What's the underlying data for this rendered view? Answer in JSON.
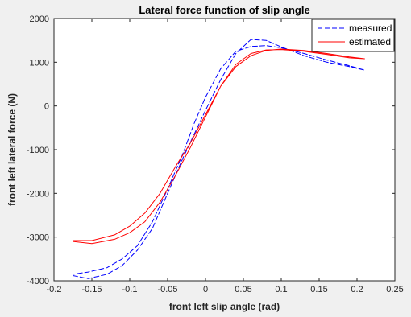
{
  "chart_data": {
    "type": "line",
    "title": "Lateral force function of slip angle",
    "xlabel": "front left slip angle (rad)",
    "ylabel": "front left lateral force (N)",
    "xlim": [
      -0.2,
      0.25
    ],
    "ylim": [
      -4000,
      2000
    ],
    "xticks": [
      -0.2,
      -0.15,
      -0.1,
      -0.05,
      0,
      0.05,
      0.1,
      0.15,
      0.2,
      0.25
    ],
    "xtick_labels": [
      "-0.2",
      "-0.15",
      "-0.1",
      "-0.05",
      "0",
      "0.05",
      "0.1",
      "0.15",
      "0.2",
      "0.25"
    ],
    "yticks": [
      -4000,
      -3000,
      -2000,
      -1000,
      0,
      1000,
      2000
    ],
    "ytick_labels": [
      "-4000",
      "-3000",
      "-2000",
      "-1000",
      "0",
      "1000",
      "2000"
    ],
    "grid": false,
    "legend_position": "top-right",
    "series": [
      {
        "name": "measured",
        "color": "#0000ff",
        "style": "dashed",
        "x": [
          -0.175,
          -0.155,
          -0.13,
          -0.11,
          -0.09,
          -0.07,
          -0.05,
          -0.03,
          -0.015,
          0.0,
          0.02,
          0.04,
          0.06,
          0.08,
          0.1,
          0.13,
          0.16,
          0.19,
          0.21,
          0.19,
          0.16,
          0.13,
          0.1,
          0.08,
          0.06,
          0.04,
          0.02,
          0.0,
          -0.015,
          -0.03,
          -0.05,
          -0.07,
          -0.09,
          -0.11,
          -0.13,
          -0.155,
          -0.175
        ],
        "y": [
          -3880,
          -3950,
          -3850,
          -3650,
          -3300,
          -2800,
          -2000,
          -1200,
          -650,
          -100,
          600,
          1200,
          1520,
          1500,
          1350,
          1150,
          1000,
          900,
          820,
          920,
          1050,
          1200,
          1330,
          1380,
          1360,
          1250,
          850,
          200,
          -400,
          -1100,
          -1900,
          -2650,
          -3200,
          -3500,
          -3700,
          -3800,
          -3850
        ]
      },
      {
        "name": "estimated",
        "color": "#ff0000",
        "style": "solid",
        "x": [
          -0.175,
          -0.15,
          -0.12,
          -0.1,
          -0.08,
          -0.06,
          -0.04,
          -0.02,
          0.0,
          0.02,
          0.04,
          0.06,
          0.08,
          0.1,
          0.13,
          0.16,
          0.19,
          0.21,
          0.19,
          0.16,
          0.13,
          0.1,
          0.08,
          0.06,
          0.04,
          0.02,
          0.0,
          -0.02,
          -0.04,
          -0.06,
          -0.08,
          -0.1,
          -0.12,
          -0.15,
          -0.175
        ],
        "y": [
          -3100,
          -3150,
          -3050,
          -2900,
          -2650,
          -2200,
          -1600,
          -950,
          -250,
          450,
          950,
          1200,
          1280,
          1290,
          1250,
          1180,
          1100,
          1080,
          1120,
          1200,
          1270,
          1300,
          1270,
          1150,
          900,
          450,
          -200,
          -850,
          -1400,
          -2000,
          -2450,
          -2750,
          -2950,
          -3080,
          -3080
        ]
      }
    ]
  }
}
